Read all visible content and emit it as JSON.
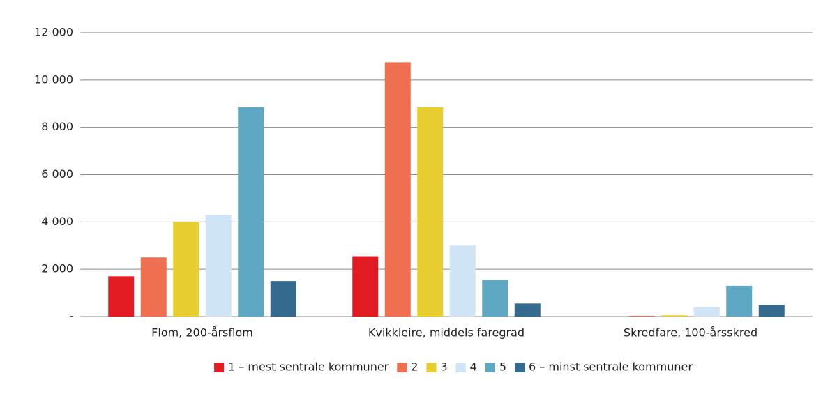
{
  "chart_data": {
    "type": "bar",
    "categories": [
      "Flom, 200-årsflom",
      "Kvikkleire, middels faregrad",
      "Skredfare, 100-årsskred"
    ],
    "series": [
      {
        "name": "1 – mest sentrale kommuner",
        "color": "#e31b23",
        "values": [
          1700,
          2550,
          0
        ]
      },
      {
        "name": "2",
        "color": "#ee7050",
        "values": [
          2500,
          10750,
          30
        ]
      },
      {
        "name": "3",
        "color": "#e8cd30",
        "values": [
          4000,
          8850,
          50
        ]
      },
      {
        "name": "4",
        "color": "#cfe4f4",
        "values": [
          4300,
          3000,
          400
        ]
      },
      {
        "name": "5",
        "color": "#5fa8c4",
        "values": [
          8850,
          1550,
          1300
        ]
      },
      {
        "name": "6 – minst sentrale kommuner",
        "color": "#336a8e",
        "values": [
          1500,
          550,
          500
        ]
      }
    ],
    "ylim": [
      0,
      12000
    ],
    "yticks": [
      {
        "value": 0,
        "label": "-"
      },
      {
        "value": 2000,
        "label": "2 000"
      },
      {
        "value": 4000,
        "label": "4 000"
      },
      {
        "value": 6000,
        "label": "6 000"
      },
      {
        "value": 8000,
        "label": "8 000"
      },
      {
        "value": 10000,
        "label": "10 000"
      },
      {
        "value": 12000,
        "label": "12 000"
      }
    ],
    "grid": true,
    "legend": "bottom"
  }
}
